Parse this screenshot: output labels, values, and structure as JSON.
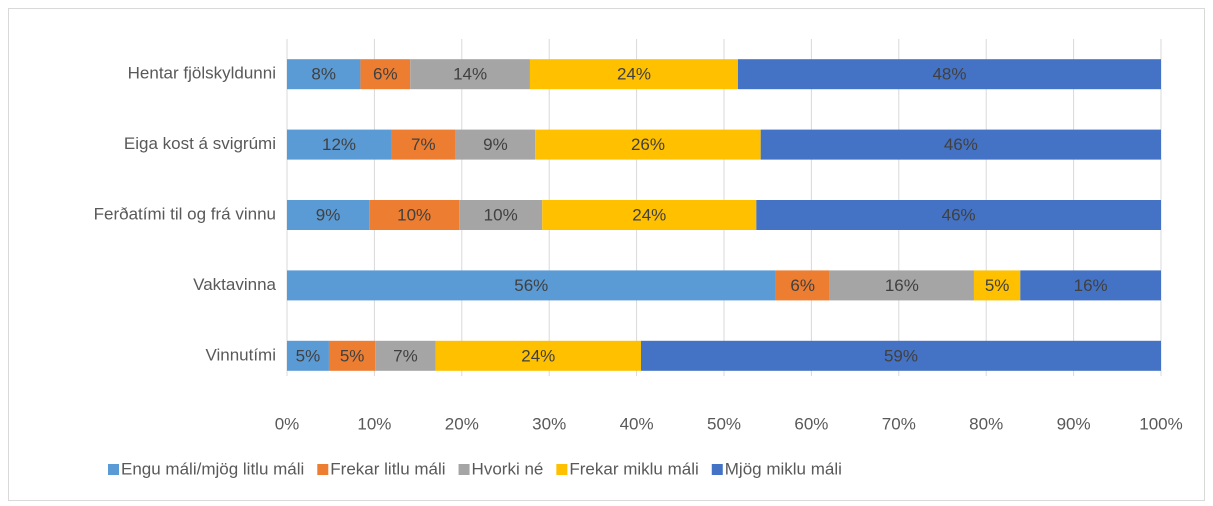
{
  "chart_data": {
    "type": "bar",
    "orientation": "horizontal",
    "stacked": true,
    "categories": [
      "Hentar fjölskyldunni",
      "Eiga kost á svigrúmi",
      "Ferðatími til og frá vinnu",
      "Vaktavinna",
      "Vinnutími"
    ],
    "series": [
      {
        "name": "Engu máli/mjög litlu máli",
        "color": "#5b9bd5",
        "values": [
          8.4,
          11.9,
          9.4,
          55.9,
          4.8
        ],
        "value_labels": [
          "8%",
          "12%",
          "9%",
          "56%",
          "5%"
        ]
      },
      {
        "name": "Frekar litlu máli",
        "color": "#ed7d31",
        "values": [
          5.7,
          7.4,
          10.3,
          6.2,
          5.3
        ],
        "value_labels": [
          "6%",
          "7%",
          "10%",
          "6%",
          "5%"
        ]
      },
      {
        "name": "Hvorki né",
        "color": "#a5a5a5",
        "values": [
          13.7,
          9.1,
          9.5,
          16.5,
          6.9
        ],
        "value_labels": [
          "14%",
          "9%",
          "10%",
          "16%",
          "7%"
        ]
      },
      {
        "name": "Frekar miklu máli",
        "color": "#ffc000",
        "values": [
          23.8,
          25.8,
          24.5,
          5.3,
          23.5
        ],
        "value_labels": [
          "24%",
          "26%",
          "24%",
          "5%",
          "24%"
        ]
      },
      {
        "name": "Mjög miklu máli",
        "color": "#4472c4",
        "values": [
          48.4,
          45.8,
          46.3,
          16.1,
          59.5
        ],
        "value_labels": [
          "48%",
          "46%",
          "46%",
          "16%",
          "59%"
        ]
      }
    ],
    "xlim": [
      0,
      100
    ],
    "xticks": [
      {
        "value": 0,
        "label": "0%"
      },
      {
        "value": 10,
        "label": "10%"
      },
      {
        "value": 20,
        "label": "20%"
      },
      {
        "value": 30,
        "label": "30%"
      },
      {
        "value": 40,
        "label": "40%"
      },
      {
        "value": 50,
        "label": "50%"
      },
      {
        "value": 60,
        "label": "60%"
      },
      {
        "value": 70,
        "label": "70%"
      },
      {
        "value": 80,
        "label": "80%"
      },
      {
        "value": 90,
        "label": "90%"
      },
      {
        "value": 100,
        "label": "100%"
      }
    ],
    "grid": true,
    "legend": "bottom"
  }
}
